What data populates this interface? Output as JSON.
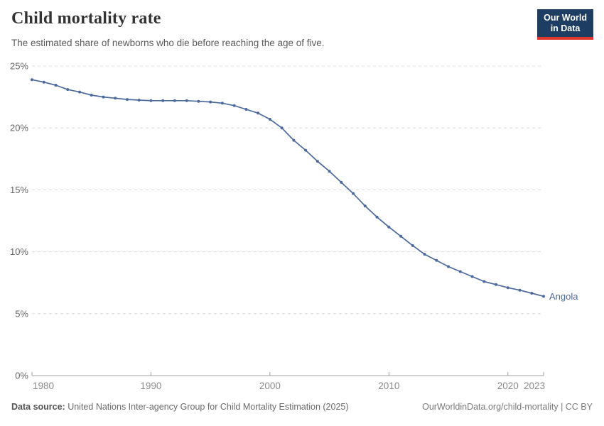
{
  "header": {
    "title": "Child mortality rate",
    "subtitle": "The estimated share of newborns who die before reaching the age of five.",
    "logo": {
      "line1": "Our World",
      "line2": "in Data"
    }
  },
  "footer": {
    "source_label": "Data source:",
    "source_text": " United Nations Inter-agency Group for Child Mortality Estimation (2025)",
    "link_text": "OurWorldinData.org/child-mortality | CC BY"
  },
  "colors": {
    "series_blue": "#4c6a9d",
    "grid": "#d9d9d9",
    "axis": "#a0a0a0",
    "y_tick_label": "#666666",
    "x_tick_label": "#8a8a8a",
    "logo_bg": "#1d3d63",
    "logo_red": "#e0372c"
  },
  "chart_data": {
    "type": "line",
    "title": "Child mortality rate",
    "subtitle": "The estimated share of newborns who die before reaching the age of five.",
    "xlabel": "",
    "ylabel": "",
    "xlim": [
      1980,
      2023
    ],
    "ylim": [
      0,
      25
    ],
    "yticks": [
      0,
      5,
      10,
      15,
      20,
      25
    ],
    "ytick_suffix": "%",
    "xticks": [
      1980,
      1990,
      2000,
      2010,
      2020,
      2023
    ],
    "grid": "horizontal-dashed",
    "legend_position": "end-of-line-label",
    "end_label": "Angola",
    "series": [
      {
        "name": "Angola",
        "color": "#4c6a9d",
        "x": [
          1980,
          1981,
          1982,
          1983,
          1984,
          1985,
          1986,
          1987,
          1988,
          1989,
          1990,
          1991,
          1992,
          1993,
          1994,
          1995,
          1996,
          1997,
          1998,
          1999,
          2000,
          2001,
          2002,
          2003,
          2004,
          2005,
          2006,
          2007,
          2008,
          2009,
          2010,
          2011,
          2012,
          2013,
          2014,
          2015,
          2016,
          2017,
          2018,
          2019,
          2020,
          2021,
          2022,
          2023
        ],
        "values": [
          23.9,
          23.7,
          23.45,
          23.1,
          22.9,
          22.65,
          22.5,
          22.4,
          22.3,
          22.25,
          22.2,
          22.2,
          22.2,
          22.2,
          22.15,
          22.1,
          22.0,
          21.8,
          21.5,
          21.2,
          20.7,
          20.0,
          19.0,
          18.2,
          17.3,
          16.5,
          15.6,
          14.7,
          13.7,
          12.8,
          12.0,
          11.25,
          10.5,
          9.8,
          9.3,
          8.8,
          8.4,
          8.0,
          7.6,
          7.35,
          7.1,
          6.9,
          6.65,
          6.4
        ]
      }
    ]
  }
}
